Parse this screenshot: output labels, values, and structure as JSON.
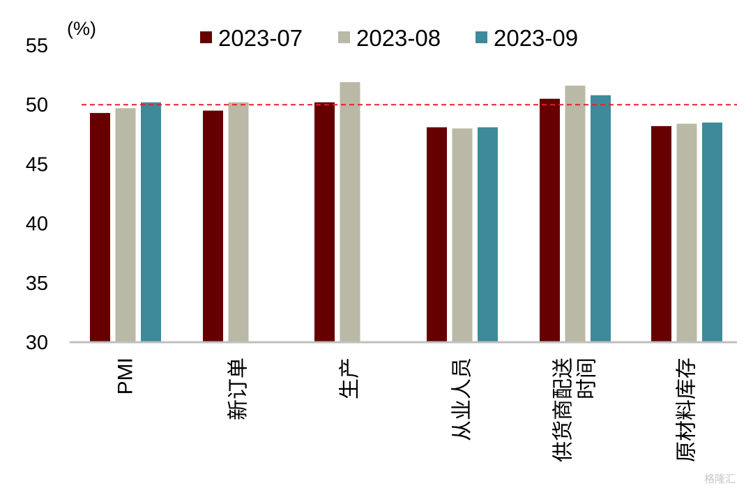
{
  "chart_data": {
    "type": "bar",
    "unit_label": "(%)",
    "categories": [
      "PMI",
      "新订单",
      "生产",
      "从业人员",
      "供货商配送时间",
      "原材料库存"
    ],
    "category_lines": [
      [
        "PMI"
      ],
      [
        "新订单"
      ],
      [
        "生产"
      ],
      [
        "从业人员"
      ],
      [
        "供货商配送",
        "时间"
      ],
      [
        "原材料库存"
      ]
    ],
    "series": [
      {
        "name": "2023-07",
        "color": "#660000",
        "values": [
          49.3,
          49.5,
          50.2,
          48.1,
          50.5,
          48.2
        ]
      },
      {
        "name": "2023-08",
        "color": "#b9b9a5",
        "values": [
          49.7,
          50.2,
          51.9,
          48.0,
          51.6,
          48.4
        ]
      },
      {
        "name": "2023-09",
        "color": "#3e8a9b",
        "values": [
          50.2,
          null,
          null,
          48.1,
          50.8,
          48.5
        ]
      }
    ],
    "ylim": [
      30,
      55
    ],
    "yticks": [
      "30",
      "35",
      "40",
      "45",
      "50",
      "55"
    ],
    "reference_line": {
      "value": 50,
      "color": "#e8202a",
      "style": "dashed"
    },
    "legend_position": "top",
    "grid": false
  }
}
